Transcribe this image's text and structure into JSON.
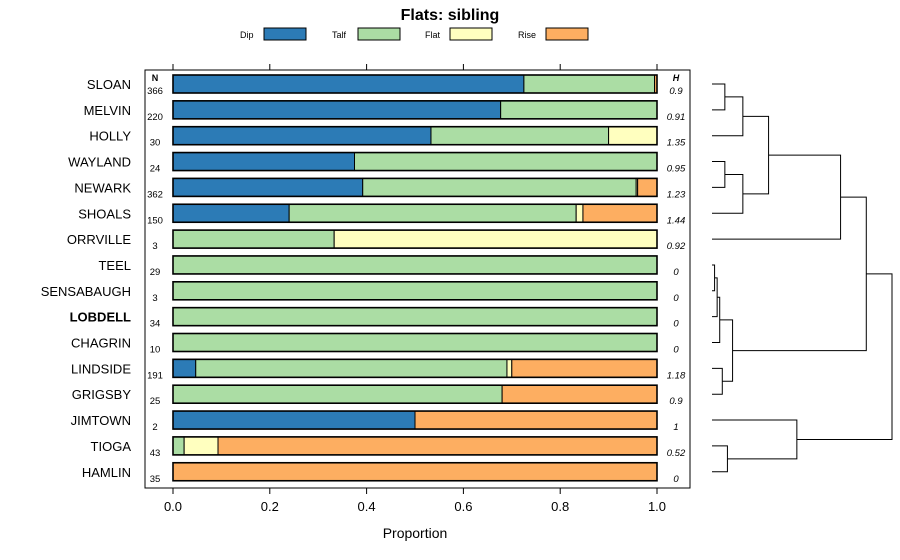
{
  "chart_data": {
    "type": "bar",
    "orientation": "horizontal",
    "stacked": true,
    "title": "Flats: sibling",
    "xlabel": "Proportion",
    "ylabel": "",
    "xlim": [
      0,
      1
    ],
    "x_ticks": [
      "0.0",
      "0.2",
      "0.4",
      "0.6",
      "0.8",
      "1.0"
    ],
    "x_tick_values": [
      0,
      0.2,
      0.4,
      0.6,
      0.8,
      1.0
    ],
    "n_header": "N",
    "h_header": "H",
    "legend": [
      {
        "name": "Dip",
        "color": "#2c7bb6"
      },
      {
        "name": "Talf",
        "color": "#abdda4"
      },
      {
        "name": "Flat",
        "color": "#ffffbf"
      },
      {
        "name": "Rise",
        "color": "#fdae61"
      }
    ],
    "rows": [
      {
        "label": "SLOAN",
        "bold": false,
        "n": "366",
        "h": "0.9",
        "values": [
          0.725,
          0.27,
          0.0,
          0.005
        ]
      },
      {
        "label": "MELVIN",
        "bold": false,
        "n": "220",
        "h": "0.91",
        "values": [
          0.677,
          0.323,
          0.0,
          0.0
        ]
      },
      {
        "label": "HOLLY",
        "bold": false,
        "n": "30",
        "h": "1.35",
        "values": [
          0.533,
          0.367,
          0.1,
          0.0
        ]
      },
      {
        "label": "WAYLAND",
        "bold": false,
        "n": "24",
        "h": "0.95",
        "values": [
          0.375,
          0.625,
          0.0,
          0.0
        ]
      },
      {
        "label": "NEWARK",
        "bold": false,
        "n": "362",
        "h": "1.23",
        "values": [
          0.392,
          0.565,
          0.003,
          0.04
        ]
      },
      {
        "label": "SHOALS",
        "bold": false,
        "n": "150",
        "h": "1.44",
        "values": [
          0.24,
          0.593,
          0.014,
          0.153
        ]
      },
      {
        "label": "ORRVILLE",
        "bold": false,
        "n": "3",
        "h": "0.92",
        "values": [
          0.0,
          0.333,
          0.667,
          0.0
        ]
      },
      {
        "label": "TEEL",
        "bold": false,
        "n": "29",
        "h": "0",
        "values": [
          0.0,
          1.0,
          0.0,
          0.0
        ]
      },
      {
        "label": "SENSABAUGH",
        "bold": false,
        "n": "3",
        "h": "0",
        "values": [
          0.0,
          1.0,
          0.0,
          0.0
        ]
      },
      {
        "label": "LOBDELL",
        "bold": true,
        "n": "34",
        "h": "0",
        "values": [
          0.0,
          1.0,
          0.0,
          0.0
        ]
      },
      {
        "label": "CHAGRIN",
        "bold": false,
        "n": "10",
        "h": "0",
        "values": [
          0.0,
          1.0,
          0.0,
          0.0
        ]
      },
      {
        "label": "LINDSIDE",
        "bold": false,
        "n": "191",
        "h": "1.18",
        "values": [
          0.047,
          0.643,
          0.01,
          0.3
        ]
      },
      {
        "label": "GRIGSBY",
        "bold": false,
        "n": "25",
        "h": "0.9",
        "values": [
          0.0,
          0.68,
          0.0,
          0.32
        ]
      },
      {
        "label": "JIMTOWN",
        "bold": false,
        "n": "2",
        "h": "1",
        "values": [
          0.5,
          0.0,
          0.0,
          0.5
        ]
      },
      {
        "label": "TIOGA",
        "bold": false,
        "n": "43",
        "h": "0.52",
        "values": [
          0.0,
          0.023,
          0.07,
          0.907
        ]
      },
      {
        "label": "HAMLIN",
        "bold": false,
        "n": "35",
        "h": "0",
        "values": [
          0.0,
          0.0,
          0.0,
          1.0
        ]
      }
    ],
    "dendrogram": {
      "leaves": [
        "SLOAN",
        "MELVIN",
        "HOLLY",
        "WAYLAND",
        "NEWARK",
        "SHOALS",
        "ORRVILLE",
        "TEEL",
        "SENSABAUGH",
        "LOBDELL",
        "CHAGRIN",
        "LINDSIDE",
        "GRIGSBY",
        "JIMTOWN",
        "TIOGA",
        "HAMLIN"
      ],
      "merges": [
        {
          "a": "SLOAN",
          "b": "MELVIN",
          "height": 0.05
        },
        {
          "a": "m0",
          "b": "HOLLY",
          "height": 0.12
        },
        {
          "a": "WAYLAND",
          "b": "NEWARK",
          "height": 0.05
        },
        {
          "a": "m2",
          "b": "SHOALS",
          "height": 0.12
        },
        {
          "a": "m1",
          "b": "m3",
          "height": 0.22
        },
        {
          "a": "m4",
          "b": "ORRVILLE",
          "height": 0.5
        },
        {
          "a": "TEEL",
          "b": "SENSABAUGH",
          "height": 0.01
        },
        {
          "a": "m6",
          "b": "LOBDELL",
          "height": 0.02
        },
        {
          "a": "m7",
          "b": "CHAGRIN",
          "height": 0.03
        },
        {
          "a": "LINDSIDE",
          "b": "GRIGSBY",
          "height": 0.04
        },
        {
          "a": "m8",
          "b": "m9",
          "height": 0.08
        },
        {
          "a": "m5",
          "b": "m10",
          "height": 0.6
        },
        {
          "a": "TIOGA",
          "b": "HAMLIN",
          "height": 0.06
        },
        {
          "a": "JIMTOWN",
          "b": "m12",
          "height": 0.33
        },
        {
          "a": "m11",
          "b": "m13",
          "height": 0.7
        }
      ]
    }
  }
}
